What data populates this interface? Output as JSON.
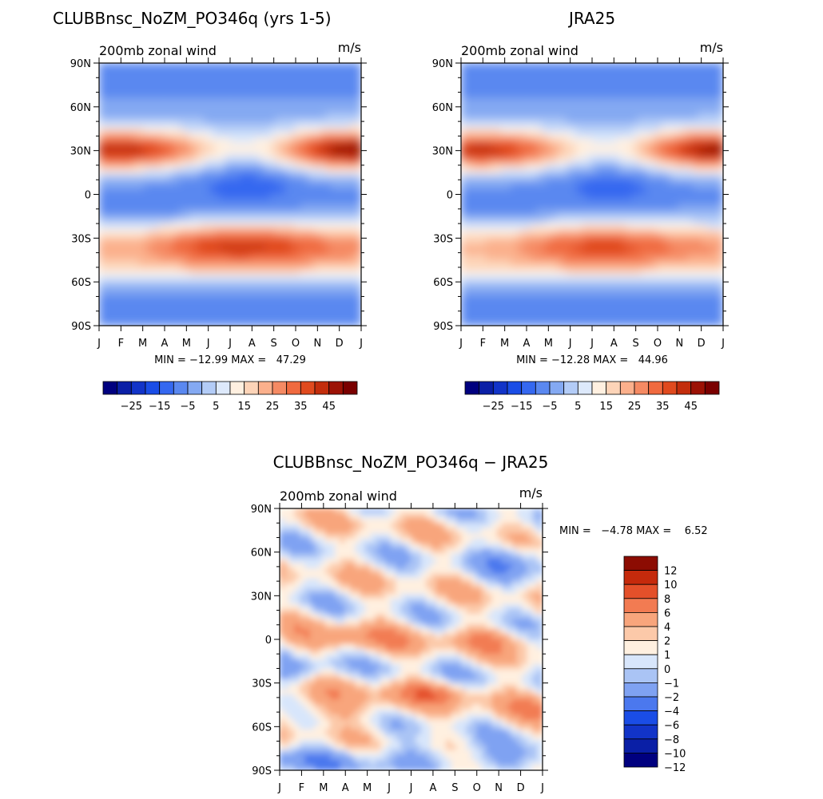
{
  "chart_data": [
    {
      "type": "heatmap",
      "title": "CLUBBnsc_NoZM_PO346q (yrs 1-5)",
      "subtitle_left": "200mb zonal wind",
      "subtitle_right": "m/s",
      "x_labels": [
        "J",
        "F",
        "M",
        "A",
        "M",
        "J",
        "J",
        "A",
        "S",
        "O",
        "N",
        "D",
        "J"
      ],
      "y_labels": [
        "90N",
        "60N",
        "30N",
        "0",
        "30S",
        "60S",
        "90S"
      ],
      "xlim": [
        0,
        12
      ],
      "ylim": [
        -90,
        90
      ],
      "min_max_text": "MIN = −12.99 MAX =   47.29",
      "min": -12.99,
      "max": 47.29,
      "colorbar_ticks": [
        "−25",
        "−15",
        "−5",
        "5",
        "15",
        "25",
        "35",
        "45"
      ],
      "levels": [
        -30,
        -25,
        -20,
        -15,
        -10,
        -5,
        0,
        5,
        10,
        15,
        20,
        25,
        30,
        35,
        40,
        45
      ],
      "colors": [
        "#00007f",
        "#0a1fa6",
        "#1234c8",
        "#1a4de6",
        "#3568f0",
        "#5a88f0",
        "#84a9f2",
        "#b3ccf7",
        "#dde9fb",
        "#fff0e0",
        "#fdd4b8",
        "#fbb08c",
        "#f58a63",
        "#f06a3f",
        "#e04a1e",
        "#c32d0c",
        "#9c1205",
        "#7a0000"
      ]
    },
    {
      "type": "heatmap",
      "title": "JRA25",
      "subtitle_left": "200mb zonal wind",
      "subtitle_right": "m/s",
      "x_labels": [
        "J",
        "F",
        "M",
        "A",
        "M",
        "J",
        "J",
        "A",
        "S",
        "O",
        "N",
        "D",
        "J"
      ],
      "y_labels": [
        "90N",
        "60N",
        "30N",
        "0",
        "30S",
        "60S",
        "90S"
      ],
      "xlim": [
        0,
        12
      ],
      "ylim": [
        -90,
        90
      ],
      "min_max_text": "MIN = −12.28 MAX =   44.96",
      "min": -12.28,
      "max": 44.96,
      "colorbar_ticks": [
        "−25",
        "−15",
        "−5",
        "5",
        "15",
        "25",
        "35",
        "45"
      ],
      "levels": [
        -30,
        -25,
        -20,
        -15,
        -10,
        -5,
        0,
        5,
        10,
        15,
        20,
        25,
        30,
        35,
        40,
        45
      ],
      "colors": [
        "#00007f",
        "#0a1fa6",
        "#1234c8",
        "#1a4de6",
        "#3568f0",
        "#5a88f0",
        "#84a9f2",
        "#b3ccf7",
        "#dde9fb",
        "#fff0e0",
        "#fdd4b8",
        "#fbb08c",
        "#f58a63",
        "#f06a3f",
        "#e04a1e",
        "#c32d0c",
        "#9c1205",
        "#7a0000"
      ]
    },
    {
      "type": "heatmap",
      "title": "CLUBBnsc_NoZM_PO346q − JRA25",
      "subtitle_left": "200mb zonal wind",
      "subtitle_right": "m/s",
      "x_labels": [
        "J",
        "F",
        "M",
        "A",
        "M",
        "J",
        "J",
        "A",
        "S",
        "O",
        "N",
        "D",
        "J"
      ],
      "y_labels": [
        "90N",
        "60N",
        "30N",
        "0",
        "30S",
        "60S",
        "90S"
      ],
      "xlim": [
        0,
        12
      ],
      "ylim": [
        -90,
        90
      ],
      "min_max_text": "MIN =   −4.78 MAX =    6.52",
      "min": -4.78,
      "max": 6.52,
      "colorbar_ticks": [
        "12",
        "10",
        "8",
        "6",
        "4",
        "2",
        "1",
        "0",
        "−1",
        "−2",
        "−4",
        "−6",
        "−8",
        "−10",
        "−12"
      ],
      "levels": [
        -12,
        -10,
        -8,
        -6,
        -4,
        -2,
        -1,
        0,
        1,
        2,
        4,
        6,
        8,
        10,
        12
      ],
      "colors": [
        "#00007f",
        "#0a1fa6",
        "#1234c8",
        "#1a4de6",
        "#4b78ee",
        "#7fa2f2",
        "#aac4f5",
        "#d8e6fb",
        "#fff0e0",
        "#fcc9a9",
        "#f8a57c",
        "#f27b52",
        "#e4502a",
        "#c52a0c",
        "#8c0c02"
      ]
    }
  ]
}
